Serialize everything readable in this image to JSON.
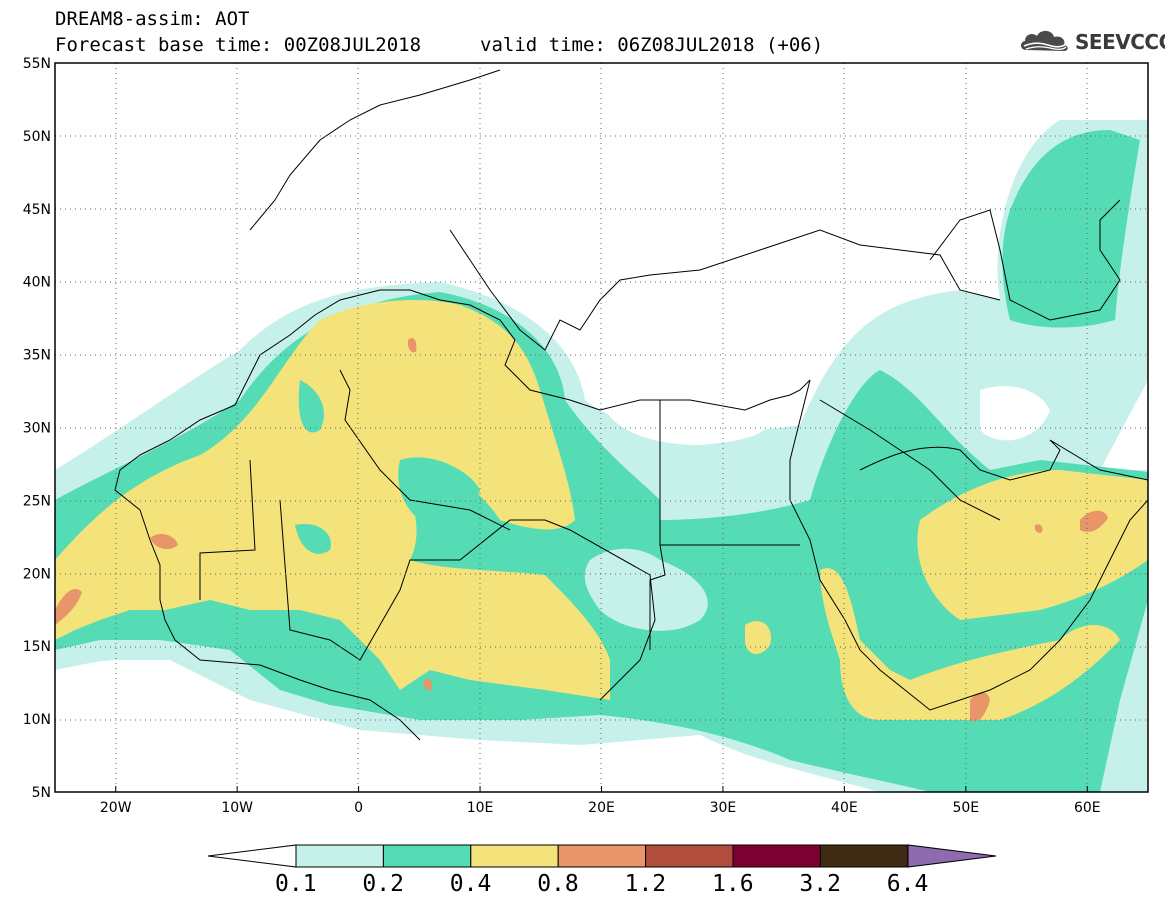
{
  "header": {
    "title": "DREAM8-assim: AOT",
    "base_time": "Forecast base time: 00Z08JUL2018",
    "valid_time": "valid time: 06Z08JUL2018 (+06)"
  },
  "logo": {
    "text": "SEEVCCC",
    "icon": "cloud-logo-icon"
  },
  "map": {
    "lon_range": [
      -25,
      65
    ],
    "lat_range": [
      5,
      55
    ],
    "lat_ticks": [
      "55N",
      "50N",
      "45N",
      "40N",
      "35N",
      "30N",
      "25N",
      "20N",
      "15N",
      "10N",
      "5N"
    ],
    "lon_ticks": [
      "20W",
      "10W",
      "0",
      "10E",
      "20E",
      "30E",
      "40E",
      "50E",
      "60E"
    ],
    "grid": "dotted"
  },
  "colorbar": {
    "labels": [
      "0.1",
      "0.2",
      "0.4",
      "0.8",
      "1.2",
      "1.6",
      "3.2",
      "6.4"
    ],
    "colors": [
      "#ffffff",
      "#c6f0ea",
      "#55dcb5",
      "#f3e37a",
      "#e8956a",
      "#b24d3e",
      "#7d0032",
      "#3f2b14",
      "#8d6bae"
    ]
  }
}
